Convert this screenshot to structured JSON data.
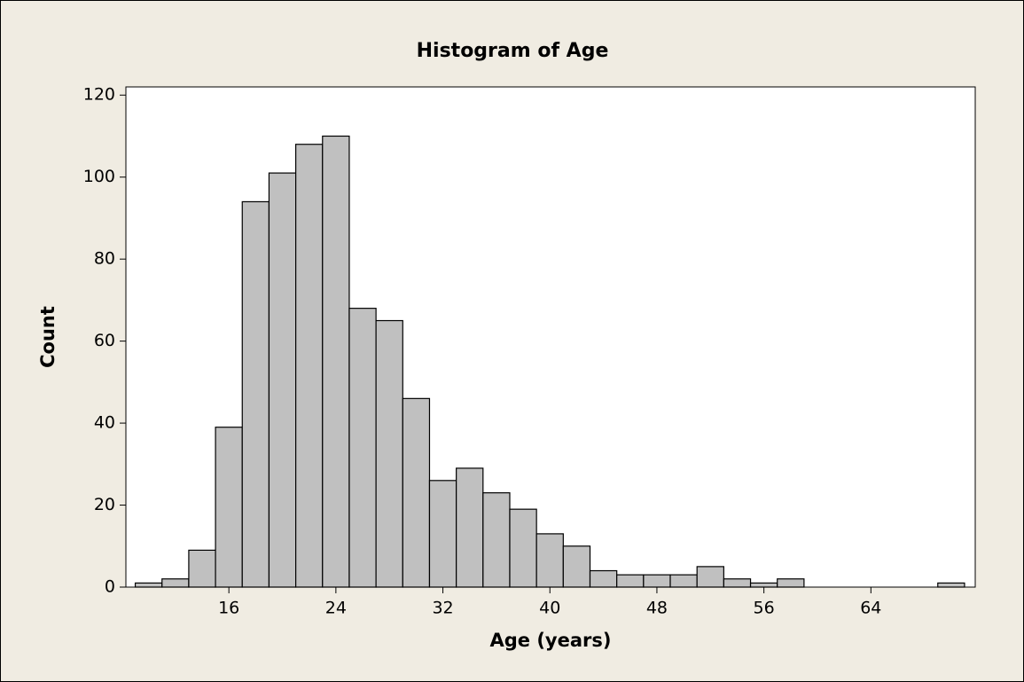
{
  "chart_data": {
    "type": "histogram",
    "title": "Histogram of Age",
    "xlabel": "Age (years)",
    "ylabel": "Count",
    "bins": [
      9,
      11,
      13,
      15,
      17,
      19,
      21,
      23,
      25,
      27,
      29,
      31,
      33,
      35,
      37,
      39,
      41,
      43,
      45,
      47,
      49,
      51,
      53,
      55,
      57,
      59,
      61,
      63,
      65,
      67,
      69,
      71
    ],
    "counts": [
      1,
      2,
      9,
      39,
      94,
      101,
      108,
      110,
      68,
      65,
      46,
      26,
      29,
      23,
      19,
      13,
      10,
      4,
      3,
      3,
      3,
      5,
      2,
      1,
      2,
      0,
      0,
      0,
      0,
      0,
      1
    ],
    "color": "#c0c0c0",
    "xlim": [
      8.3,
      71.8
    ],
    "xticks": [
      16,
      24,
      32,
      40,
      48,
      56,
      64
    ],
    "ylim": [
      0,
      122
    ],
    "yticks": [
      0,
      20,
      40,
      60,
      80,
      100,
      120
    ],
    "grid": false
  }
}
